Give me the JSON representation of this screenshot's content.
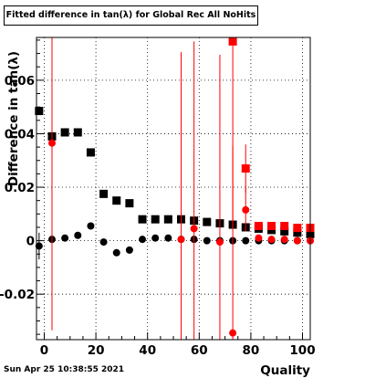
{
  "chart_data": {
    "type": "scatter",
    "title": "Fitted difference in tan(λ) for Global Rec All NoHits",
    "xlabel": "Quality",
    "ylabel": "Difference in tan(λ)",
    "xlim": [
      -3,
      103
    ],
    "ylim": [
      -0.037,
      0.076
    ],
    "x_ticks": [
      0,
      20,
      40,
      60,
      80,
      100
    ],
    "y_ticks": [
      -0.02,
      0,
      0.02,
      0.04,
      0.06
    ],
    "y_tick_labels": [
      "-0.02",
      "0",
      "0.02",
      "0.04",
      "0.06"
    ],
    "grid": true,
    "series": [
      {
        "marker": "square",
        "color": "#000000",
        "points": [
          {
            "x": -2,
            "y": 0.0485,
            "err": 0.0015
          },
          {
            "x": 3,
            "y": 0.039,
            "err": 0.0012
          },
          {
            "x": 8,
            "y": 0.0405,
            "err": 0.001
          },
          {
            "x": 13,
            "y": 0.0405,
            "err": 0.001
          },
          {
            "x": 18,
            "y": 0.033,
            "err": 0.0015
          },
          {
            "x": 23,
            "y": 0.0175,
            "err": 0.0012
          },
          {
            "x": 28,
            "y": 0.015,
            "err": 0.001
          },
          {
            "x": 33,
            "y": 0.014,
            "err": 0.001
          },
          {
            "x": 38,
            "y": 0.008,
            "err": 0.0005
          },
          {
            "x": 43,
            "y": 0.008,
            "err": 0.0005
          },
          {
            "x": 48,
            "y": 0.008,
            "err": 0.0005
          },
          {
            "x": 53,
            "y": 0.008,
            "err": 0.0005
          },
          {
            "x": 58,
            "y": 0.0075,
            "err": 0.0005
          },
          {
            "x": 63,
            "y": 0.007,
            "err": 0.0005
          },
          {
            "x": 68,
            "y": 0.0065,
            "err": 0.0005
          },
          {
            "x": 73,
            "y": 0.006,
            "err": 0.0006
          },
          {
            "x": 78,
            "y": 0.005,
            "err": 0.0006
          },
          {
            "x": 83,
            "y": 0.0045,
            "err": 0.0006
          },
          {
            "x": 88,
            "y": 0.004,
            "err": 0.0006
          },
          {
            "x": 93,
            "y": 0.0035,
            "err": 0.0006
          },
          {
            "x": 98,
            "y": 0.003,
            "err": 0.0006
          },
          {
            "x": 103,
            "y": 0.0025,
            "err": 0.0006
          }
        ]
      },
      {
        "marker": "circle",
        "color": "#000000",
        "points": [
          {
            "x": -2,
            "y": -0.002,
            "err": 0.005
          },
          {
            "x": 3,
            "y": 0.0005,
            "err": 0.0008
          },
          {
            "x": 8,
            "y": 0.001,
            "err": 0.0008
          },
          {
            "x": 13,
            "y": 0.002,
            "err": 0.0008
          },
          {
            "x": 18,
            "y": 0.0055,
            "err": 0.0008
          },
          {
            "x": 23,
            "y": -0.0005,
            "err": 0.0006
          },
          {
            "x": 28,
            "y": -0.0045,
            "err": 0.0006
          },
          {
            "x": 33,
            "y": -0.0035,
            "err": 0.0006
          },
          {
            "x": 38,
            "y": 0.0005,
            "err": 0.0004
          },
          {
            "x": 43,
            "y": 0.001,
            "err": 0.0004
          },
          {
            "x": 48,
            "y": 0.001,
            "err": 0.0004
          },
          {
            "x": 53,
            "y": 0.0005,
            "err": 0.0004
          },
          {
            "x": 58,
            "y": 0.0005,
            "err": 0.0004
          },
          {
            "x": 63,
            "y": 0.0,
            "err": 0.0004
          },
          {
            "x": 68,
            "y": 0.0,
            "err": 0.0004
          },
          {
            "x": 73,
            "y": 0.0,
            "err": 0.0004
          },
          {
            "x": 78,
            "y": 0.0,
            "err": 0.0004
          },
          {
            "x": 83,
            "y": 0.0,
            "err": 0.0004
          },
          {
            "x": 88,
            "y": 0.0,
            "err": 0.0004
          },
          {
            "x": 93,
            "y": 0.0,
            "err": 0.0004
          },
          {
            "x": 98,
            "y": 0.0,
            "err": 0.0004
          },
          {
            "x": 103,
            "y": 0.0,
            "err": 0.0004
          }
        ]
      },
      {
        "marker": "square",
        "color": "#ff0000",
        "points": [
          {
            "x": 73,
            "y": 0.0745,
            "err": 0.07
          },
          {
            "x": 78,
            "y": 0.027,
            "err": 0.009
          },
          {
            "x": 83,
            "y": 0.0055,
            "err": 0.0012
          },
          {
            "x": 88,
            "y": 0.0055,
            "err": 0.0012
          },
          {
            "x": 93,
            "y": 0.0055,
            "err": 0.0012
          },
          {
            "x": 98,
            "y": 0.0048,
            "err": 0.0012
          },
          {
            "x": 103,
            "y": 0.0048,
            "err": 0.0012
          }
        ]
      },
      {
        "marker": "circle",
        "color": "#ff0000",
        "points": [
          {
            "x": 3,
            "y": 0.0365,
            "err": 0.07
          },
          {
            "x": 53,
            "y": 0.0005,
            "err": 0.07
          },
          {
            "x": 58,
            "y": 0.0045,
            "err": 0.07
          },
          {
            "x": 68,
            "y": -0.0005,
            "err": 0.07
          },
          {
            "x": 73,
            "y": -0.0345,
            "err": 0.07
          },
          {
            "x": 78,
            "y": 0.0115,
            "err": 0.008
          },
          {
            "x": 83,
            "y": 0.001,
            "err": 0.001
          },
          {
            "x": 88,
            "y": 0.0005,
            "err": 0.001
          },
          {
            "x": 93,
            "y": 0.0005,
            "err": 0.001
          },
          {
            "x": 98,
            "y": 0.0,
            "err": 0.001
          },
          {
            "x": 103,
            "y": 0.0,
            "err": 0.001
          }
        ]
      }
    ]
  },
  "footer": {
    "timestamp": "Sun Apr 25 10:38:55 2021"
  }
}
